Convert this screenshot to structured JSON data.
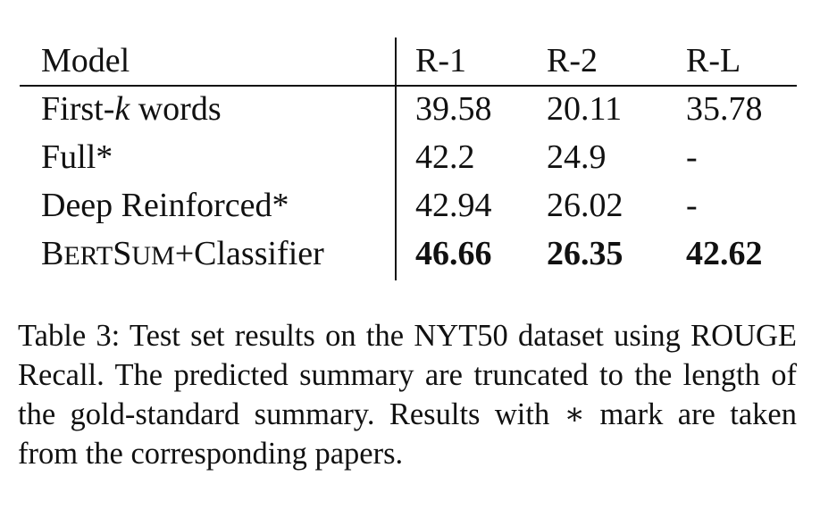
{
  "table": {
    "headers": [
      "Model",
      "R-1",
      "R-2",
      "R-L"
    ],
    "rows": [
      {
        "model_prefix": "First-",
        "model_italic": "k",
        "model_suffix": " words",
        "r1": "39.58",
        "r2": "20.11",
        "rl": "35.78",
        "bold": false
      },
      {
        "model": "Full*",
        "r1": "42.2",
        "r2": "24.9",
        "rl": "-",
        "bold": false
      },
      {
        "model": "Deep Reinforced*",
        "r1": "42.94",
        "r2": "26.02",
        "rl": "-",
        "bold": false
      },
      {
        "model_b": "B",
        "model_sc": "ERT",
        "model_s": "S",
        "model_sc2": "UM",
        "model_rest": "+Classifier",
        "r1": "46.66",
        "r2": "26.35",
        "rl": "42.62",
        "bold": true
      }
    ]
  },
  "caption": "Table 3: Test set results on the NYT50 dataset using ROUGE Recall. The predicted summary are truncated to the length of the gold-standard summary. Results with ∗ mark are taken from the corresponding papers."
}
